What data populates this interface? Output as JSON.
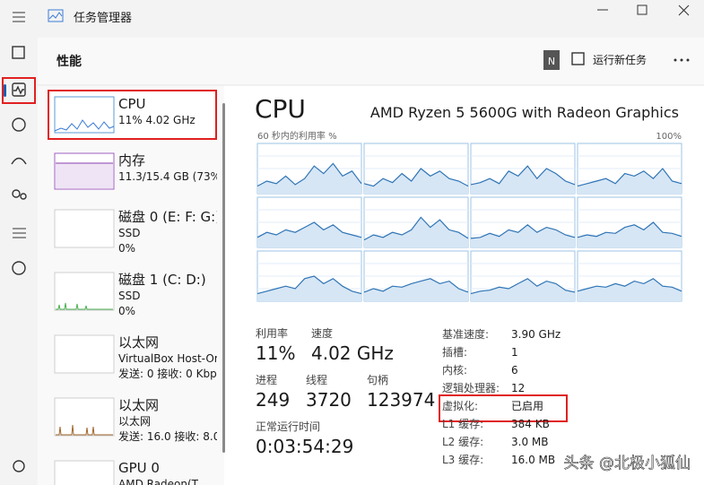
{
  "window": {
    "title": "任务管理器"
  },
  "header": {
    "title": "性能",
    "user_initial": "N",
    "run_task": "运行新任务"
  },
  "sidebar": [
    {
      "name": "CPU",
      "lines": [
        "11% 4.02 GHz"
      ]
    },
    {
      "name": "内存",
      "lines": [
        "11.3/15.4 GB (73%)"
      ]
    },
    {
      "name": "磁盘 0 (E: F: G:)",
      "lines": [
        "SSD",
        "0%"
      ]
    },
    {
      "name": "磁盘 1 (C: D:)",
      "lines": [
        "SSD",
        "0%"
      ]
    },
    {
      "name": "以太网",
      "lines": [
        "VirtualBox Host-Or",
        "发送: 0 接收: 0 Kbp"
      ]
    },
    {
      "name": "以太网",
      "lines": [
        "以太网",
        "发送: 16.0 接收: 8.0"
      ]
    },
    {
      "name": "GPU 0",
      "lines": [
        "AMD Radeon(T..."
      ]
    }
  ],
  "main": {
    "title": "CPU",
    "model": "AMD Ryzen 5 5600G with Radeon Graphics",
    "graph_label": "60 秒内的利用率 %",
    "graph_max_label": "100%",
    "graph_range": [
      0,
      100
    ],
    "graphs": [
      [
        15,
        25,
        20,
        35,
        18,
        30,
        55,
        40,
        60,
        35,
        45,
        20
      ],
      [
        20,
        15,
        30,
        22,
        40,
        25,
        50,
        35,
        45,
        30,
        25,
        15
      ],
      [
        18,
        22,
        30,
        20,
        45,
        35,
        55,
        30,
        50,
        40,
        25,
        18
      ],
      [
        15,
        20,
        25,
        30,
        20,
        40,
        35,
        45,
        30,
        50,
        25,
        20
      ],
      [
        20,
        30,
        25,
        35,
        30,
        40,
        50,
        35,
        45,
        30,
        25,
        20
      ],
      [
        15,
        25,
        20,
        30,
        25,
        35,
        60,
        40,
        55,
        35,
        30,
        18
      ],
      [
        18,
        20,
        28,
        22,
        35,
        30,
        45,
        30,
        40,
        35,
        25,
        20
      ],
      [
        20,
        25,
        22,
        30,
        28,
        40,
        45,
        35,
        50,
        30,
        28,
        22
      ],
      [
        15,
        20,
        25,
        30,
        25,
        45,
        50,
        35,
        45,
        30,
        20,
        15
      ],
      [
        18,
        25,
        20,
        30,
        28,
        35,
        40,
        45,
        35,
        40,
        25,
        18
      ],
      [
        15,
        20,
        22,
        28,
        25,
        35,
        45,
        30,
        40,
        35,
        22,
        18
      ],
      [
        20,
        25,
        30,
        28,
        35,
        30,
        40,
        35,
        45,
        30,
        28,
        20
      ]
    ]
  },
  "stats": [
    {
      "label": "利用率",
      "value": "11%"
    },
    {
      "label": "速度",
      "value": "4.02 GHz"
    },
    {
      "label": "进程",
      "value": "249"
    },
    {
      "label": "线程",
      "value": "3720"
    },
    {
      "label": "句柄",
      "value": "123974"
    },
    {
      "label": "正常运行时间",
      "value": "0:03:54:29"
    }
  ],
  "specs": [
    {
      "label": "基准速度:",
      "value": "3.90 GHz"
    },
    {
      "label": "插槽:",
      "value": "1"
    },
    {
      "label": "内核:",
      "value": "6"
    },
    {
      "label": "逻辑处理器:",
      "value": "12"
    },
    {
      "label": "虚拟化:",
      "value": "已启用"
    },
    {
      "label": "L1 缓存:",
      "value": "384 KB"
    },
    {
      "label": "L2 缓存:",
      "value": "3.0 MB"
    },
    {
      "label": "L3 缓存:",
      "value": "16.0 MB"
    }
  ],
  "watermark": "头条 @北极小狐仙"
}
